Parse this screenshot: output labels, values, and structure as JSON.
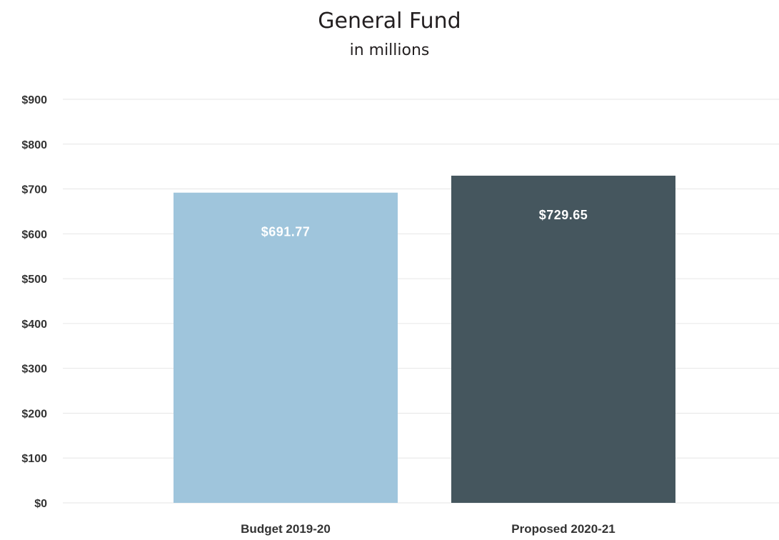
{
  "chart_data": {
    "type": "bar",
    "title": "General Fund",
    "subtitle": "in millions",
    "categories": [
      "Budget 2019-20",
      "Proposed 2020-21"
    ],
    "values": [
      691.77,
      729.65
    ],
    "data_labels": [
      "$691.77",
      "$729.65"
    ],
    "bar_colors": [
      "#9fc5dc",
      "#45565e"
    ],
    "ylim": [
      0,
      900
    ],
    "yticks": [
      0,
      100,
      200,
      300,
      400,
      500,
      600,
      700,
      800,
      900
    ],
    "ytick_labels": [
      "$0",
      "$100",
      "$200",
      "$300",
      "$400",
      "$500",
      "$600",
      "$700",
      "$800",
      "$900"
    ],
    "grid": true,
    "grid_color": "#e6e6e6",
    "legend": "none",
    "xlabel": "",
    "ylabel": ""
  }
}
